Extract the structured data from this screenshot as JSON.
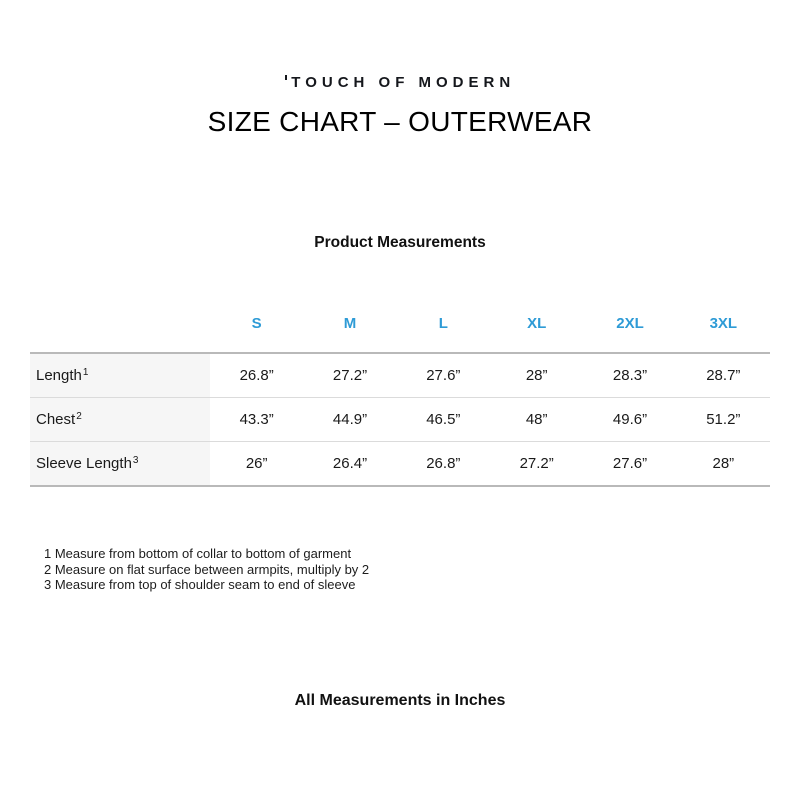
{
  "logo": {
    "text": "TOUCH OF MODERN"
  },
  "title": "SIZE CHART – OUTERWEAR",
  "subtitle": "Product Measurements",
  "table": {
    "columns": [
      "S",
      "M",
      "L",
      "XL",
      "2XL",
      "3XL"
    ],
    "rows": [
      {
        "label": "Length",
        "sup": "1",
        "values": [
          "26.8”",
          "27.2”",
          "27.6”",
          "28”",
          "28.3”",
          "28.7”"
        ]
      },
      {
        "label": "Chest",
        "sup": "2",
        "values": [
          "43.3”",
          "44.9”",
          "46.5”",
          "48”",
          "49.6”",
          "51.2”"
        ]
      },
      {
        "label": "Sleeve Length",
        "sup": "3",
        "values": [
          "26”",
          "26.4”",
          "26.8”",
          "27.2”",
          "27.6”",
          "28”"
        ]
      }
    ]
  },
  "footnotes": [
    "1 Measure from bottom of collar to bottom of garment",
    "2 Measure on flat surface between armpits, multiply by 2",
    "3 Measure from top of shoulder seam to end of sleeve"
  ],
  "footer": "All Measurements in Inches",
  "colors": {
    "accent_blue": "#2E9BD6",
    "label_column_bg": "#f6f6f6",
    "table_border_strong": "#b9b9b9",
    "table_border_light": "#dbdbdb"
  }
}
